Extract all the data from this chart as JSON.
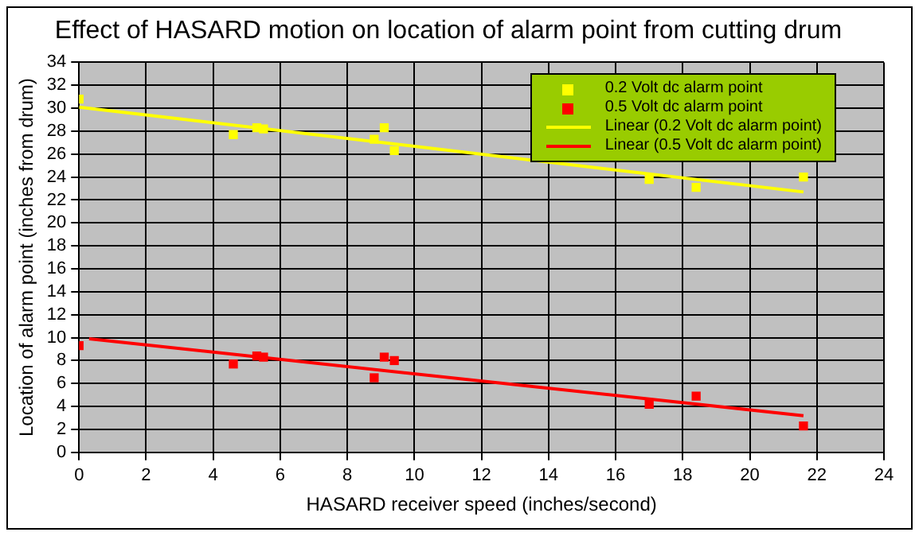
{
  "chart_data": {
    "type": "scatter",
    "title": "Effect of HASARD motion on location of alarm point from cutting drum",
    "xlabel": "HASARD receiver speed (inches/second)",
    "ylabel": "Location of alarm point (inches from drum)",
    "xlim": [
      0,
      24
    ],
    "xticks": [
      0,
      2,
      4,
      6,
      8,
      10,
      12,
      14,
      16,
      18,
      20,
      22,
      24
    ],
    "ylim": [
      0,
      34
    ],
    "yticks": [
      0,
      2,
      4,
      6,
      8,
      10,
      12,
      14,
      16,
      18,
      20,
      22,
      24,
      26,
      28,
      30,
      32,
      34
    ],
    "grid": true,
    "legend": "top right",
    "series": [
      {
        "name": "0.2 Volt dc alarm point",
        "marker": "square",
        "color": "#ffff00",
        "x": [
          0,
          4.6,
          5.3,
          5.5,
          8.8,
          9.1,
          9.4,
          17,
          18.4,
          21.6
        ],
        "values": [
          30.8,
          27.7,
          28.3,
          28.2,
          27.3,
          28.3,
          26.3,
          23.8,
          23.1,
          24
        ]
      },
      {
        "name": "0.5 Volt dc alarm point",
        "marker": "square",
        "color": "#ff0000",
        "x": [
          0,
          4.6,
          5.3,
          5.5,
          8.8,
          9.1,
          9.4,
          17,
          18.4,
          21.6
        ],
        "values": [
          9.3,
          7.7,
          8.4,
          8.3,
          6.5,
          8.3,
          8.0,
          4.2,
          4.9,
          2.3
        ]
      },
      {
        "name": "Linear (0.2 Volt dc alarm point)",
        "type": "line",
        "marker": "none",
        "color": "#ffff00",
        "x": [
          0,
          21.6
        ],
        "values": [
          30.1,
          22.7
        ]
      },
      {
        "name": "Linear (0.5 Volt dc alarm point)",
        "type": "line",
        "marker": "none",
        "color": "#ff0000",
        "x": [
          0.3,
          21.6
        ],
        "values": [
          9.9,
          3.2
        ]
      }
    ]
  }
}
